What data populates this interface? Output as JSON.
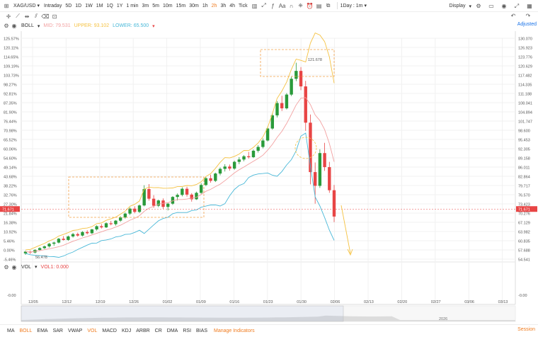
{
  "toolbar": {
    "symbol": "XAG/USD",
    "timeframes": [
      "Intraday",
      "5D",
      "1D",
      "1W",
      "1M",
      "1Q",
      "1Y",
      "1 min",
      "3m",
      "5m",
      "10m",
      "15m",
      "30m",
      "1h",
      "2h",
      "3h",
      "4h",
      "Tick"
    ],
    "active_timeframe": "2h",
    "interval": "1Day : 1m",
    "display_label": "Display",
    "adjusted_label": "Adjusted"
  },
  "indicator_row": {
    "name": "BOLL",
    "mid_label": "MID:",
    "mid_value": "79.531",
    "upper_label": "UPPER:",
    "upper_value": "93.102",
    "lower_label": "LOWER:",
    "lower_value": "65.500"
  },
  "vol_row": {
    "name": "VOL",
    "vol_label": "VOL1:",
    "vol_value": "0.000"
  },
  "colors": {
    "up": "#2a9a3a",
    "down": "#e84545",
    "mid": "#f2a0a0",
    "upper": "#f5c242",
    "lower": "#49b8d8",
    "accent": "#f07b1e",
    "box": "#f3a14a"
  },
  "chart_data": {
    "type": "candlestick",
    "x_tick_labels": [
      "12/05",
      "12/12",
      "12/19",
      "12/26",
      "01/02",
      "01/09",
      "01/16",
      "01/23",
      "01/30",
      "02/06",
      "02/13",
      "02/20",
      "02/27",
      "03/06",
      "03/13"
    ],
    "left_axis_labels": [
      "125.57%",
      "120.11%",
      "114.65%",
      "109.19%",
      "103.73%",
      "98.27%",
      "92.81%",
      "87.35%",
      "81.90%",
      "76.44%",
      "70.98%",
      "65.52%",
      "60.06%",
      "54.60%",
      "49.14%",
      "43.68%",
      "38.22%",
      "32.76%",
      "27.30%",
      "21.84%",
      "16.38%",
      "10.92%",
      "5.46%",
      "0.00%",
      "-5.46%"
    ],
    "right_axis_labels": [
      "130.070",
      "126.923",
      "123.776",
      "120.629",
      "117.482",
      "114.335",
      "111.188",
      "108.041",
      "104.894",
      "101.747",
      "98.600",
      "95.453",
      "92.305",
      "89.158",
      "86.011",
      "82.864",
      "79.717",
      "76.570",
      "73.423",
      "70.276",
      "67.129",
      "63.982",
      "60.835",
      "57.688",
      "54.541"
    ],
    "y_range": [
      54.541,
      130.07
    ],
    "current_price": "71.671",
    "current_pct": "21.84%",
    "low_annotation": "56.478",
    "high_annotation": "121.678",
    "vol_axis_label": "-0.00",
    "nav_year_label": "2026",
    "candles": [
      [
        56.5,
        57.4,
        56.0,
        57.1
      ],
      [
        57.1,
        57.5,
        56.3,
        56.8
      ],
      [
        56.8,
        57.9,
        56.5,
        57.7
      ],
      [
        57.7,
        58.6,
        57.3,
        58.3
      ],
      [
        58.3,
        59.2,
        58.0,
        58.9
      ],
      [
        58.9,
        60.1,
        58.5,
        59.8
      ],
      [
        59.8,
        60.5,
        59.1,
        60.2
      ],
      [
        60.2,
        61.8,
        59.9,
        61.5
      ],
      [
        61.5,
        62.4,
        60.9,
        61.1
      ],
      [
        61.1,
        62.6,
        60.8,
        62.3
      ],
      [
        62.3,
        63.5,
        61.9,
        63.1
      ],
      [
        63.1,
        63.6,
        62.2,
        62.6
      ],
      [
        62.6,
        64.1,
        62.3,
        63.8
      ],
      [
        63.8,
        64.4,
        63.0,
        63.4
      ],
      [
        63.4,
        64.9,
        63.1,
        64.7
      ],
      [
        64.7,
        66.1,
        64.3,
        65.8
      ],
      [
        65.8,
        66.5,
        65.0,
        65.4
      ],
      [
        65.4,
        67.1,
        65.2,
        66.8
      ],
      [
        66.8,
        67.6,
        66.1,
        66.5
      ],
      [
        66.5,
        67.9,
        66.0,
        67.7
      ],
      [
        67.7,
        69.2,
        67.3,
        68.8
      ],
      [
        68.8,
        70.5,
        68.4,
        70.1
      ],
      [
        70.1,
        72.2,
        69.6,
        71.8
      ],
      [
        71.8,
        72.6,
        70.2,
        70.7
      ],
      [
        70.7,
        73.2,
        70.3,
        72.9
      ],
      [
        72.9,
        79.8,
        72.6,
        78.5
      ],
      [
        78.5,
        80.2,
        74.5,
        75.2
      ],
      [
        75.2,
        76.4,
        72.1,
        72.8
      ],
      [
        72.8,
        74.9,
        72.3,
        74.6
      ],
      [
        74.6,
        75.3,
        71.6,
        72.4
      ],
      [
        72.4,
        73.9,
        71.2,
        73.5
      ],
      [
        73.5,
        76.1,
        73.1,
        75.8
      ],
      [
        75.8,
        77.0,
        74.6,
        76.5
      ],
      [
        76.5,
        79.1,
        76.0,
        78.6
      ],
      [
        78.6,
        79.3,
        75.9,
        76.6
      ],
      [
        76.6,
        77.1,
        74.2,
        75.0
      ],
      [
        75.0,
        77.6,
        74.8,
        77.2
      ],
      [
        77.2,
        80.5,
        76.9,
        79.9
      ],
      [
        79.9,
        82.6,
        79.5,
        82.2
      ],
      [
        82.2,
        83.4,
        80.7,
        81.3
      ],
      [
        81.3,
        84.1,
        80.9,
        83.8
      ],
      [
        83.8,
        85.9,
        83.2,
        85.4
      ],
      [
        85.4,
        87.0,
        84.5,
        86.2
      ],
      [
        86.2,
        86.9,
        84.8,
        85.5
      ],
      [
        85.5,
        88.2,
        85.1,
        87.8
      ],
      [
        87.8,
        89.4,
        87.0,
        88.6
      ],
      [
        88.6,
        90.1,
        88.0,
        89.7
      ],
      [
        89.7,
        91.2,
        88.9,
        89.4
      ],
      [
        89.4,
        92.0,
        89.1,
        91.6
      ],
      [
        91.6,
        93.5,
        91.0,
        92.9
      ],
      [
        92.9,
        95.8,
        92.4,
        95.1
      ],
      [
        95.1,
        99.8,
        94.8,
        99.2
      ],
      [
        99.2,
        104.5,
        98.8,
        103.7
      ],
      [
        103.7,
        108.6,
        103.0,
        107.9
      ],
      [
        107.9,
        110.4,
        105.2,
        106.1
      ],
      [
        106.1,
        111.3,
        105.7,
        110.8
      ],
      [
        110.8,
        116.9,
        110.3,
        116.2
      ],
      [
        116.2,
        121.7,
        115.4,
        118.9
      ],
      [
        118.9,
        120.2,
        112.3,
        113.6
      ],
      [
        113.6,
        115.5,
        98.4,
        101.2
      ],
      [
        101.2,
        104.0,
        80.1,
        84.3
      ],
      [
        84.3,
        87.6,
        73.5,
        79.6
      ],
      [
        79.6,
        92.1,
        78.9,
        90.8
      ],
      [
        90.8,
        94.3,
        84.7,
        86.0
      ],
      [
        86.0,
        87.8,
        77.2,
        78.1
      ],
      [
        78.1,
        79.9,
        67.2,
        69.1
      ]
    ]
  },
  "bottom_bar": {
    "items": [
      "MA",
      "BOLL",
      "EMA",
      "SAR",
      "VWAP",
      "VOL",
      "MACD",
      "KDJ",
      "ARBR",
      "CR",
      "DMA",
      "RSI",
      "BIAS"
    ],
    "active": [
      "BOLL",
      "VOL"
    ],
    "manage_label": "Manage Indicators",
    "session_label": "Session"
  }
}
